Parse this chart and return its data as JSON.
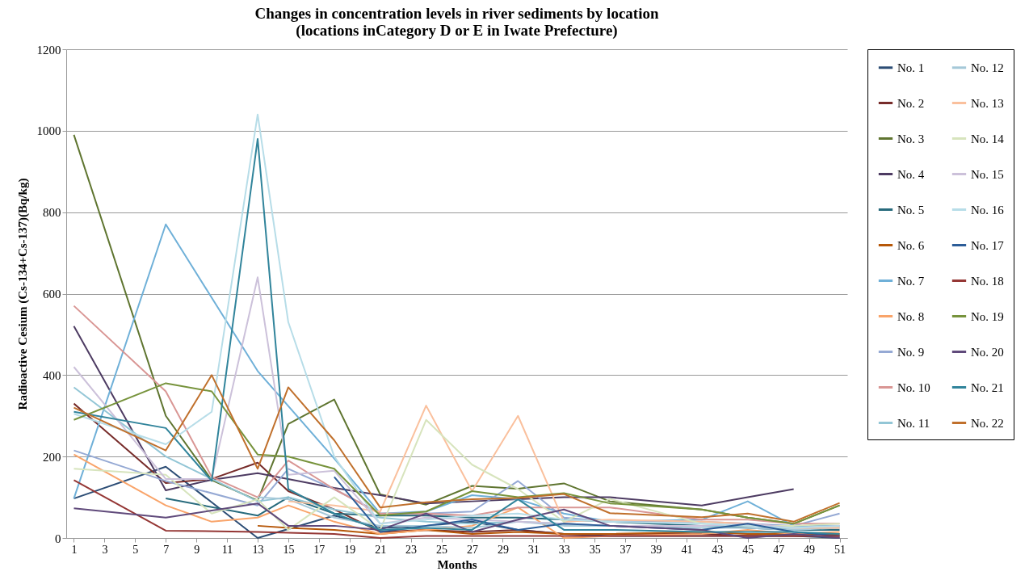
{
  "chart_data": {
    "type": "line",
    "title": "Changes in concentration levels in river sediments by location\n(locations inCategory D or E in Iwate Prefecture)",
    "xlabel": "Months",
    "ylabel": "Radioactive Cesium (Cs-134+Cs-137)(Bq/kg)",
    "x": [
      1,
      7,
      10,
      13,
      15,
      18,
      21,
      24,
      27,
      30,
      33,
      36,
      42,
      45,
      48,
      51
    ],
    "xlim": [
      0.5,
      51.5
    ],
    "xticks": [
      1,
      3,
      5,
      7,
      9,
      11,
      13,
      15,
      17,
      19,
      21,
      23,
      25,
      27,
      29,
      31,
      33,
      35,
      37,
      39,
      41,
      43,
      45,
      47,
      49,
      51
    ],
    "ylim": [
      0,
      1200
    ],
    "yticks": [
      0,
      200,
      400,
      600,
      800,
      1000,
      1200
    ],
    "grid": "y",
    "legend": "right",
    "series": [
      {
        "name": "No. 1",
        "color": "#2c4d75",
        "values": [
          97,
          175,
          null,
          0,
          null,
          55,
          25,
          30,
          40,
          20,
          10,
          5,
          5,
          5,
          5,
          0
        ]
      },
      {
        "name": "No. 2",
        "color": "#772c2a",
        "values": [
          330,
          135,
          145,
          185,
          115,
          70,
          15,
          20,
          15,
          20,
          10,
          10,
          10,
          5,
          5,
          5
        ]
      },
      {
        "name": "No. 3",
        "color": "#5f7530",
        "values": [
          990,
          300,
          142,
          92,
          280,
          340,
          107,
          82,
          128,
          121,
          134,
          90,
          70,
          50,
          35,
          80
        ]
      },
      {
        "name": "No. 4",
        "color": "#4d3b62",
        "values": [
          520,
          117,
          143,
          159,
          null,
          123,
          105,
          85,
          90,
          95,
          100,
          100,
          80,
          100,
          120,
          null
        ]
      },
      {
        "name": "No. 5",
        "color": "#276a7c",
        "values": [
          null,
          97,
          null,
          55,
          100,
          60,
          55,
          55,
          50,
          50,
          45,
          40,
          30,
          25,
          20,
          20
        ]
      },
      {
        "name": "No. 6",
        "color": "#b65708",
        "values": [
          null,
          null,
          null,
          30,
          25,
          20,
          10,
          20,
          10,
          15,
          10,
          10,
          15,
          10,
          10,
          10
        ]
      },
      {
        "name": "No. 7",
        "color": "#6fb0d8",
        "values": [
          97,
          770,
          null,
          410,
          null,
          195,
          60,
          65,
          105,
          95,
          60,
          40,
          45,
          90,
          30,
          30
        ]
      },
      {
        "name": "No. 8",
        "color": "#f9a46a",
        "values": [
          205,
          80,
          40,
          50,
          80,
          40,
          10,
          20,
          30,
          75,
          0,
          5,
          10,
          20,
          10,
          15
        ]
      },
      {
        "name": "No. 9",
        "color": "#95a9d4",
        "values": [
          215,
          140,
          null,
          80,
          170,
          120,
          60,
          60,
          65,
          140,
          50,
          40,
          40,
          35,
          30,
          60
        ]
      },
      {
        "name": "No. 10",
        "color": "#d99694",
        "values": [
          570,
          360,
          150,
          100,
          190,
          120,
          60,
          60,
          55,
          75,
          75,
          75,
          45,
          45,
          35,
          35
        ]
      },
      {
        "name": "No. 11",
        "color": "#93c6d6",
        "values": [
          370,
          200,
          145,
          90,
          100,
          70,
          50,
          40,
          35,
          40,
          35,
          30,
          30,
          30,
          25,
          25
        ]
      },
      {
        "name": "No. 12",
        "color": "#a5c8d8",
        "values": [
          null,
          null,
          null,
          100,
          95,
          50,
          30,
          30,
          25,
          40,
          30,
          30,
          25,
          25,
          20,
          25
        ]
      },
      {
        "name": "No. 13",
        "color": "#fac09d",
        "values": [
          null,
          null,
          null,
          null,
          90,
          80,
          65,
          325,
          115,
          300,
          40,
          45,
          40,
          35,
          25,
          25
        ]
      },
      {
        "name": "No. 14",
        "color": "#d7e4bd",
        "values": [
          170,
          155,
          60,
          95,
          20,
          100,
          20,
          290,
          180,
          120,
          40,
          96,
          35,
          30,
          30,
          35
        ]
      },
      {
        "name": "No. 15",
        "color": "#ccc1da",
        "values": [
          420,
          145,
          145,
          640,
          155,
          165,
          35,
          50,
          45,
          40,
          35,
          30,
          30,
          35,
          25,
          30
        ]
      },
      {
        "name": "No. 16",
        "color": "#b7dde8",
        "values": [
          305,
          230,
          310,
          1040,
          530,
          200,
          35,
          45,
          55,
          60,
          45,
          40,
          35,
          30,
          25,
          30
        ]
      },
      {
        "name": "No. 17",
        "color": "#2c5d98",
        "values": [
          null,
          null,
          null,
          null,
          null,
          150,
          15,
          30,
          45,
          20,
          35,
          30,
          20,
          35,
          15,
          5
        ]
      },
      {
        "name": "No. 18",
        "color": "#953735",
        "values": [
          142,
          18,
          null,
          15,
          null,
          10,
          0,
          5,
          5,
          5,
          5,
          5,
          5,
          5,
          5,
          5
        ]
      },
      {
        "name": "No. 19",
        "color": "#77933c",
        "values": [
          290,
          380,
          360,
          205,
          200,
          170,
          55,
          65,
          115,
          100,
          110,
          85,
          70,
          50,
          35,
          80
        ]
      },
      {
        "name": "No. 20",
        "color": "#604a7b",
        "values": [
          73,
          50,
          null,
          85,
          30,
          30,
          20,
          60,
          15,
          45,
          70,
          30,
          20,
          0,
          10,
          0
        ]
      },
      {
        "name": "No. 21",
        "color": "#31849b",
        "values": [
          310,
          270,
          140,
          980,
          120,
          60,
          20,
          25,
          20,
          95,
          20,
          20,
          15,
          15,
          15,
          10
        ]
      },
      {
        "name": "No. 22",
        "color": "#c0702c",
        "values": [
          320,
          215,
          400,
          170,
          370,
          240,
          75,
          88,
          95,
          98,
          108,
          61,
          51,
          60,
          40,
          86
        ]
      }
    ]
  }
}
